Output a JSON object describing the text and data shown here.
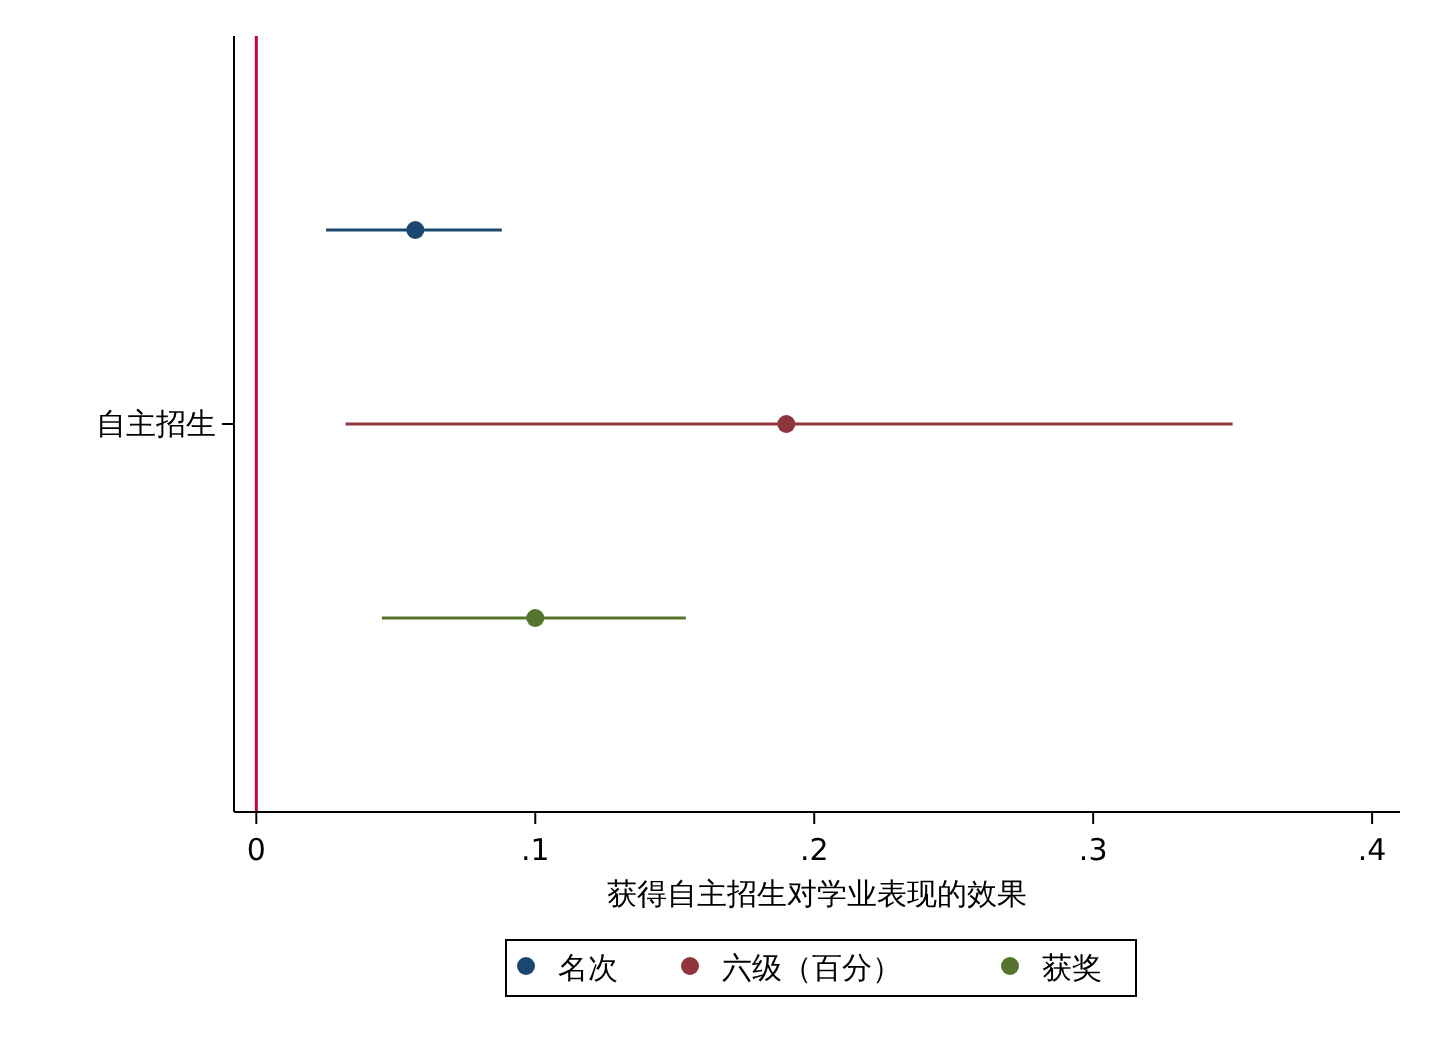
{
  "chart_data": {
    "type": "scatter",
    "orientation": "horizontal",
    "xlabel": "获得自主招生对学业表现的效果",
    "categories": [
      "自主招生"
    ],
    "series": [
      {
        "name": "名次",
        "color": "#1a476f",
        "values": [
          0.057
        ],
        "errors": [
          [
            0.025,
            0.088
          ]
        ]
      },
      {
        "name": "六级（百分）",
        "color": "#90353b",
        "values": [
          0.19
        ],
        "errors": [
          [
            0.032,
            0.35
          ]
        ]
      },
      {
        "name": "获奖",
        "color": "#55752f",
        "values": [
          0.1
        ],
        "errors": [
          [
            0.045,
            0.154
          ]
        ]
      }
    ],
    "xlim": [
      -0.008,
      0.41
    ],
    "xticks": [
      0,
      {
        "value": 0.1,
        "label": ".1"
      },
      {
        "value": 0.2,
        "label": ".2"
      },
      {
        "value": 0.3,
        "label": ".3"
      },
      {
        "value": 0.4,
        "label": ".4"
      }
    ],
    "ref_lines": [
      {
        "axis": "x",
        "value": 0,
        "color": "#c10534"
      }
    ],
    "legend": "bottom",
    "marker": "circle",
    "grid": false
  }
}
